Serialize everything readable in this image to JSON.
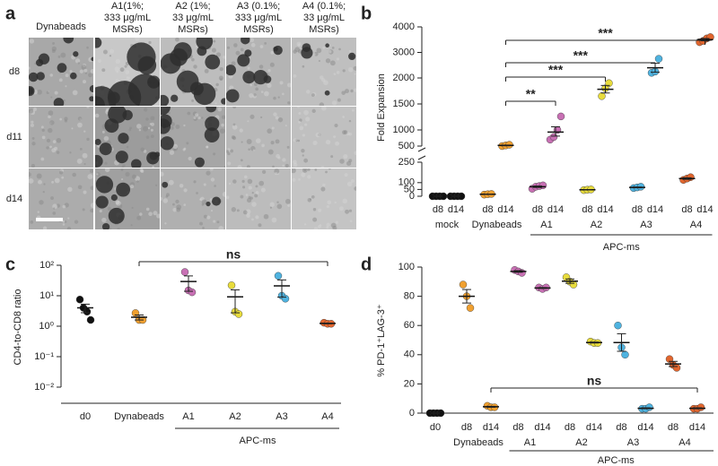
{
  "micrographs": {
    "panel_label": "a",
    "columns": [
      [
        "Dynabeads"
      ],
      [
        "A1(1%;",
        "333 μg/mL",
        "MSRs)"
      ],
      [
        "A2 (1%;",
        "33 μg/mL",
        "MSRs)"
      ],
      [
        "A3 (0.1%;",
        "333 μg/mL",
        "MSRs)"
      ],
      [
        "A4 (0.1%;",
        "33 μg/mL",
        "MSRs)"
      ]
    ],
    "rows": [
      "d8",
      "d11",
      "d14"
    ]
  },
  "chart_data": [
    {
      "type": "scatter",
      "panel_label": "b",
      "y_label": "Fold Expansion",
      "y_segments": [
        {
          "ylim": [
            0,
            250
          ],
          "yticks": [
            0,
            50,
            100,
            250
          ]
        },
        {
          "ylim": [
            500,
            1000
          ],
          "yticks": [
            500
          ]
        },
        {
          "ylim": [
            1000,
            2000
          ],
          "yticks": [
            1000,
            1500
          ]
        },
        {
          "ylim": [
            2000,
            4000
          ],
          "yticks": [
            2000,
            3000,
            4000
          ]
        }
      ],
      "series": [
        {
          "name": "mock",
          "color": "#111111",
          "categories": [
            "d8",
            "d14"
          ],
          "values": [
            [
              0,
              0,
              0,
              0
            ],
            [
              0,
              0,
              0,
              0
            ]
          ]
        },
        {
          "name": "Dynabeads",
          "color": "#f0a030",
          "categories": [
            "d8",
            "d14"
          ],
          "values": [
            [
              12,
              15,
              17
            ],
            [
              500,
              520,
              540
            ]
          ]
        },
        {
          "name": "A1",
          "color": "#c870b4",
          "categories": [
            "d8",
            "d14"
          ],
          "values": [
            [
              55,
              70,
              75,
              80
            ],
            [
              700,
              780,
              1000,
              1260
            ]
          ]
        },
        {
          "name": "A2",
          "color": "#e8dc3c",
          "categories": [
            "d8",
            "d14"
          ],
          "values": [
            [
              45,
              48,
              50
            ],
            [
              1650,
              1800,
              1900
            ]
          ]
        },
        {
          "name": "A3",
          "color": "#4fb3e0",
          "categories": [
            "d8",
            "d14"
          ],
          "values": [
            [
              60,
              65,
              70
            ],
            [
              2200,
              2250,
              2750
            ]
          ]
        },
        {
          "name": "A4",
          "color": "#e2662e",
          "categories": [
            "d8",
            "d14"
          ],
          "values": [
            [
              120,
              130,
              140
            ],
            [
              3400,
              3450,
              3550,
              3600
            ]
          ]
        }
      ],
      "group_label": "APC-ms",
      "comparisons": [
        "**",
        "***",
        "***",
        "***"
      ]
    },
    {
      "type": "scatter",
      "panel_label": "c",
      "y_label": "CD4-to-CD8 ratio",
      "log_scale": true,
      "ylim": [
        0.01,
        100
      ],
      "yticks": [
        {
          "value": 0.01,
          "label": "10⁻²"
        },
        {
          "value": 0.1,
          "label": "10⁻¹"
        },
        {
          "value": 1,
          "label": "10⁰"
        },
        {
          "value": 10,
          "label": "10¹"
        },
        {
          "value": 100,
          "label": "10²"
        }
      ],
      "series": [
        {
          "name": "d0",
          "color": "#111111",
          "values": [
            7.5,
            4,
            3,
            1.6
          ]
        },
        {
          "name": "Dynabeads",
          "color": "#f0a030",
          "values": [
            2.7,
            1.6,
            1.6
          ]
        },
        {
          "name": "A1",
          "color": "#c870b4",
          "values": [
            60,
            15,
            13
          ]
        },
        {
          "name": "A2",
          "color": "#e8dc3c",
          "values": [
            22,
            3,
            2.5
          ]
        },
        {
          "name": "A3",
          "color": "#4fb3e0",
          "values": [
            45,
            10,
            8
          ]
        },
        {
          "name": "A4",
          "color": "#e2662e",
          "values": [
            1.3,
            1.2,
            1.2
          ]
        }
      ],
      "group_label": "APC-ms",
      "comparisons": [
        "ns"
      ]
    },
    {
      "type": "scatter",
      "panel_label": "d",
      "y_label": "% PD-1⁺LAG-3⁺",
      "ylim": [
        0,
        100
      ],
      "yticks": [
        0,
        20,
        40,
        60,
        80,
        100
      ],
      "series": [
        {
          "color": "#111111",
          "categories": [
            "d0"
          ],
          "values": [
            [
              0,
              0,
              0,
              0
            ]
          ]
        },
        {
          "name": "Dynabeads",
          "color": "#f0a030",
          "categories": [
            "d8",
            "d14"
          ],
          "values": [
            [
              88,
              80,
              72
            ],
            [
              5,
              4,
              4
            ]
          ]
        },
        {
          "name": "A1",
          "color": "#c870b4",
          "categories": [
            "d8",
            "d14"
          ],
          "values": [
            [
              98,
              97,
              96
            ],
            [
              86,
              85,
              86
            ]
          ]
        },
        {
          "name": "A2",
          "color": "#e8dc3c",
          "categories": [
            "d8",
            "d14"
          ],
          "values": [
            [
              93,
              90,
              88
            ],
            [
              49,
              48,
              48
            ]
          ]
        },
        {
          "name": "A3",
          "color": "#4fb3e0",
          "categories": [
            "d8",
            "d14"
          ],
          "values": [
            [
              60,
              45,
              40
            ],
            [
              3,
              3,
              4
            ]
          ]
        },
        {
          "name": "A4",
          "color": "#e2662e",
          "categories": [
            "d8",
            "d14"
          ],
          "values": [
            [
              37,
              33,
              31
            ],
            [
              3,
              3,
              4
            ]
          ]
        }
      ],
      "group_label": "APC-ms",
      "comparisons": [
        "ns"
      ]
    }
  ]
}
